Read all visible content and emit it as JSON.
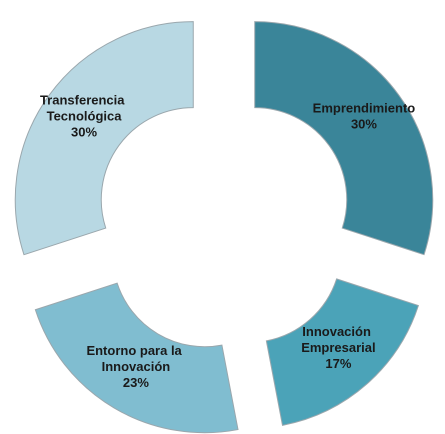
{
  "chart_data": {
    "type": "donut",
    "categories": [
      "Emprendimiento",
      "Innovación Empresarial",
      "Entorno para la Innovación",
      "Transferencia Tecnológica"
    ],
    "values": [
      30,
      17,
      23,
      30
    ],
    "value_labels": [
      "30%",
      "17%",
      "23%",
      "30%"
    ],
    "colors": [
      "#3a8599",
      "#4ba3b8",
      "#80bdd0",
      "#b8d8e3"
    ]
  }
}
